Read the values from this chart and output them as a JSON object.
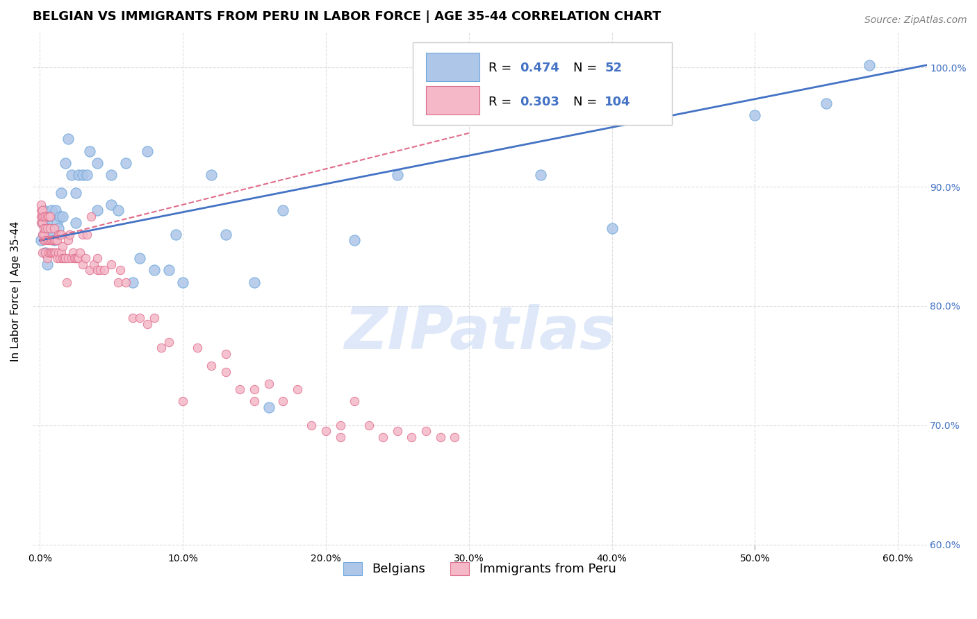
{
  "title": "BELGIAN VS IMMIGRANTS FROM PERU IN LABOR FORCE | AGE 35-44 CORRELATION CHART",
  "source": "Source: ZipAtlas.com",
  "xlabel_bottom": "In Labor Force | Age 35-44",
  "ylabel": "In Labor Force | Age 35-44",
  "x_ticks": [
    0.0,
    0.1,
    0.2,
    0.3,
    0.4,
    0.5,
    0.6
  ],
  "x_tick_labels": [
    "0.0%",
    "10.0%",
    "20.0%",
    "30.0%",
    "40.0%",
    "50.0%",
    "60.0%"
  ],
  "y_ticks": [
    0.6,
    0.7,
    0.8,
    0.9,
    1.0
  ],
  "y_tick_labels": [
    "60.0%",
    "70.0%",
    "80.0%",
    "90.0%",
    "100.0%"
  ],
  "xlim": [
    -0.005,
    0.62
  ],
  "ylim": [
    0.595,
    1.03
  ],
  "legend_entries": [
    {
      "label": "Belgians",
      "color": "#aec6e8",
      "R": 0.474,
      "N": 52
    },
    {
      "label": "Immigrants from Peru",
      "color": "#f4b8c8",
      "R": 0.303,
      "N": 104
    }
  ],
  "watermark": "ZIPatlas",
  "blue_scatter_x": [
    0.001,
    0.002,
    0.003,
    0.003,
    0.004,
    0.005,
    0.005,
    0.006,
    0.007,
    0.008,
    0.009,
    0.01,
    0.011,
    0.012,
    0.013,
    0.014,
    0.015,
    0.016,
    0.018,
    0.02,
    0.022,
    0.025,
    0.025,
    0.027,
    0.03,
    0.033,
    0.035,
    0.04,
    0.04,
    0.05,
    0.05,
    0.055,
    0.06,
    0.065,
    0.07,
    0.075,
    0.08,
    0.09,
    0.095,
    0.1,
    0.12,
    0.13,
    0.15,
    0.16,
    0.17,
    0.22,
    0.25,
    0.35,
    0.4,
    0.5,
    0.55,
    0.58
  ],
  "blue_scatter_y": [
    0.855,
    0.87,
    0.88,
    0.86,
    0.845,
    0.835,
    0.86,
    0.865,
    0.875,
    0.88,
    0.86,
    0.855,
    0.88,
    0.87,
    0.865,
    0.875,
    0.895,
    0.875,
    0.92,
    0.94,
    0.91,
    0.895,
    0.87,
    0.91,
    0.91,
    0.91,
    0.93,
    0.92,
    0.88,
    0.91,
    0.885,
    0.88,
    0.92,
    0.82,
    0.84,
    0.93,
    0.83,
    0.83,
    0.86,
    0.82,
    0.91,
    0.86,
    0.82,
    0.715,
    0.88,
    0.855,
    0.91,
    0.91,
    0.865,
    0.96,
    0.97,
    1.002
  ],
  "pink_scatter_x": [
    0.001,
    0.001,
    0.001,
    0.001,
    0.002,
    0.002,
    0.002,
    0.002,
    0.002,
    0.003,
    0.003,
    0.003,
    0.003,
    0.004,
    0.004,
    0.004,
    0.004,
    0.005,
    0.005,
    0.005,
    0.005,
    0.006,
    0.006,
    0.006,
    0.007,
    0.007,
    0.007,
    0.007,
    0.008,
    0.008,
    0.009,
    0.009,
    0.01,
    0.01,
    0.01,
    0.011,
    0.011,
    0.012,
    0.012,
    0.013,
    0.013,
    0.014,
    0.014,
    0.015,
    0.015,
    0.016,
    0.016,
    0.017,
    0.018,
    0.019,
    0.02,
    0.02,
    0.021,
    0.022,
    0.023,
    0.024,
    0.025,
    0.026,
    0.027,
    0.028,
    0.03,
    0.03,
    0.032,
    0.033,
    0.035,
    0.036,
    0.038,
    0.04,
    0.04,
    0.042,
    0.045,
    0.05,
    0.055,
    0.056,
    0.06,
    0.065,
    0.07,
    0.075,
    0.08,
    0.085,
    0.09,
    0.1,
    0.11,
    0.12,
    0.13,
    0.13,
    0.14,
    0.15,
    0.15,
    0.16,
    0.17,
    0.18,
    0.19,
    0.2,
    0.21,
    0.21,
    0.22,
    0.23,
    0.24,
    0.25,
    0.26,
    0.27,
    0.28,
    0.29
  ],
  "pink_scatter_y": [
    0.87,
    0.875,
    0.88,
    0.885,
    0.845,
    0.86,
    0.87,
    0.875,
    0.88,
    0.855,
    0.86,
    0.865,
    0.875,
    0.845,
    0.855,
    0.865,
    0.875,
    0.84,
    0.855,
    0.865,
    0.875,
    0.845,
    0.855,
    0.875,
    0.845,
    0.855,
    0.865,
    0.875,
    0.845,
    0.855,
    0.845,
    0.855,
    0.845,
    0.855,
    0.865,
    0.845,
    0.855,
    0.84,
    0.855,
    0.845,
    0.86,
    0.84,
    0.86,
    0.845,
    0.86,
    0.84,
    0.85,
    0.84,
    0.84,
    0.82,
    0.84,
    0.855,
    0.86,
    0.84,
    0.845,
    0.84,
    0.84,
    0.84,
    0.84,
    0.845,
    0.835,
    0.86,
    0.84,
    0.86,
    0.83,
    0.875,
    0.835,
    0.83,
    0.84,
    0.83,
    0.83,
    0.835,
    0.82,
    0.83,
    0.82,
    0.79,
    0.79,
    0.785,
    0.79,
    0.765,
    0.77,
    0.72,
    0.765,
    0.75,
    0.745,
    0.76,
    0.73,
    0.73,
    0.72,
    0.735,
    0.72,
    0.73,
    0.7,
    0.695,
    0.69,
    0.7,
    0.72,
    0.7,
    0.69,
    0.695,
    0.69,
    0.695,
    0.69,
    0.69
  ],
  "blue_line_x": [
    0.0,
    0.62
  ],
  "blue_line_y": [
    0.855,
    1.002
  ],
  "pink_line_x": [
    0.0,
    0.3
  ],
  "pink_line_y": [
    0.855,
    0.945
  ],
  "background_color": "#ffffff",
  "grid_color": "#dddddd",
  "scatter_blue_color": "#aec6e8",
  "scatter_blue_edge": "#6fa8dc",
  "scatter_pink_color": "#f4b8c8",
  "scatter_pink_edge": "#e06c8a",
  "line_blue_color": "#4472c4",
  "line_pink_color": "#e06c8a",
  "right_tick_color": "#4472c4",
  "watermark_color": "#c8daf4",
  "title_fontsize": 13,
  "axis_label_fontsize": 11,
  "tick_fontsize": 10,
  "legend_fontsize": 13,
  "source_fontsize": 10
}
